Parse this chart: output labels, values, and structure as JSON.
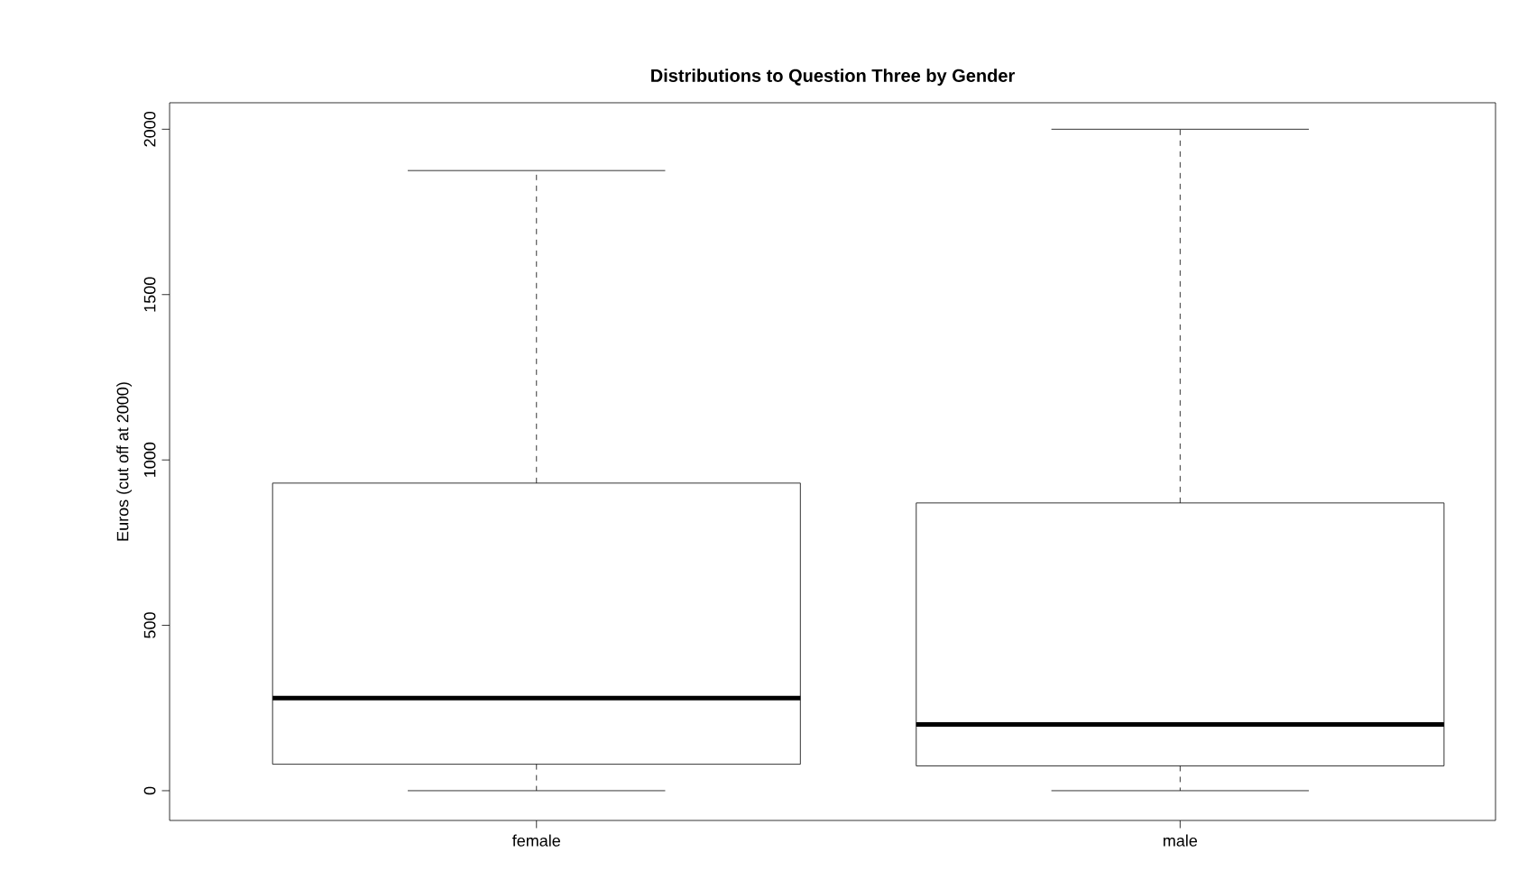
{
  "chart_data": {
    "type": "box",
    "title": "Distributions to Question Three by Gender",
    "ylabel": "Euros (cut off at 2000)",
    "categories": [
      "female",
      "male"
    ],
    "boxes": [
      {
        "low": 0,
        "q1": 80,
        "median": 280,
        "q3": 930,
        "high": 1875
      },
      {
        "low": 0,
        "q1": 75,
        "median": 200,
        "q3": 870,
        "high": 2000
      }
    ],
    "ylim": [
      -90,
      2080
    ],
    "yticks": [
      0,
      500,
      1000,
      1500,
      2000
    ]
  }
}
